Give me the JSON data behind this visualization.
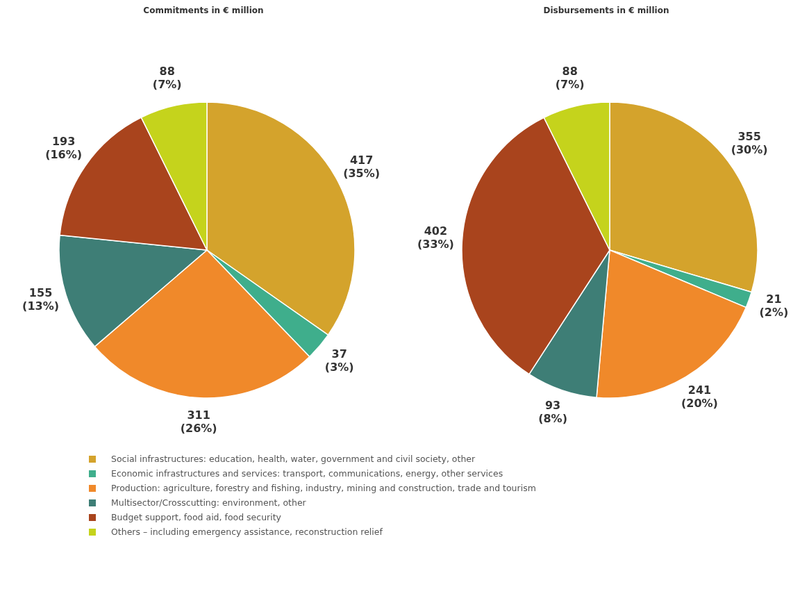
{
  "chart_data": [
    {
      "type": "pie",
      "title": "Commitments in € million",
      "categories": [
        "Social infrastructures: education, health, water, government and civil society, other",
        "Economic infrastructures and services: transport, communications, energy, other services",
        "Production: agriculture, forestry and fishing, industry, mining and construction, trade and tourism",
        "Multisector/Crosscutting: environment, other",
        "Budget support, food aid, food security",
        "Others – including emergency assistance, reconstruction relief"
      ],
      "values": [
        417,
        37,
        311,
        155,
        193,
        88
      ],
      "value_labels": [
        "417 (35%)",
        "37 (3%)",
        "311 (26%)",
        "155 (13%)",
        "193 (16%)",
        "88 (7%)"
      ],
      "colors": [
        "#d4a32c",
        "#3fae8c",
        "#f0892a",
        "#3e7e76",
        "#a9441d",
        "#c5d31c"
      ],
      "legend": "bottom"
    },
    {
      "type": "pie",
      "title": "Disbursements in € million",
      "categories": [
        null,
        null,
        null,
        null,
        null,
        null
      ],
      "values": [
        355,
        21,
        241,
        93,
        402,
        88
      ],
      "value_labels": [
        "355 (30%)",
        "21 (2%)",
        "241 (20%)",
        "93 (8%)",
        "402 (33%)",
        "88 (7%)"
      ],
      "colors": [
        "#d4a32c",
        "#3fae8c",
        "#f0892a",
        "#3e7e76",
        "#a9441d",
        "#c5d31c"
      ]
    }
  ]
}
